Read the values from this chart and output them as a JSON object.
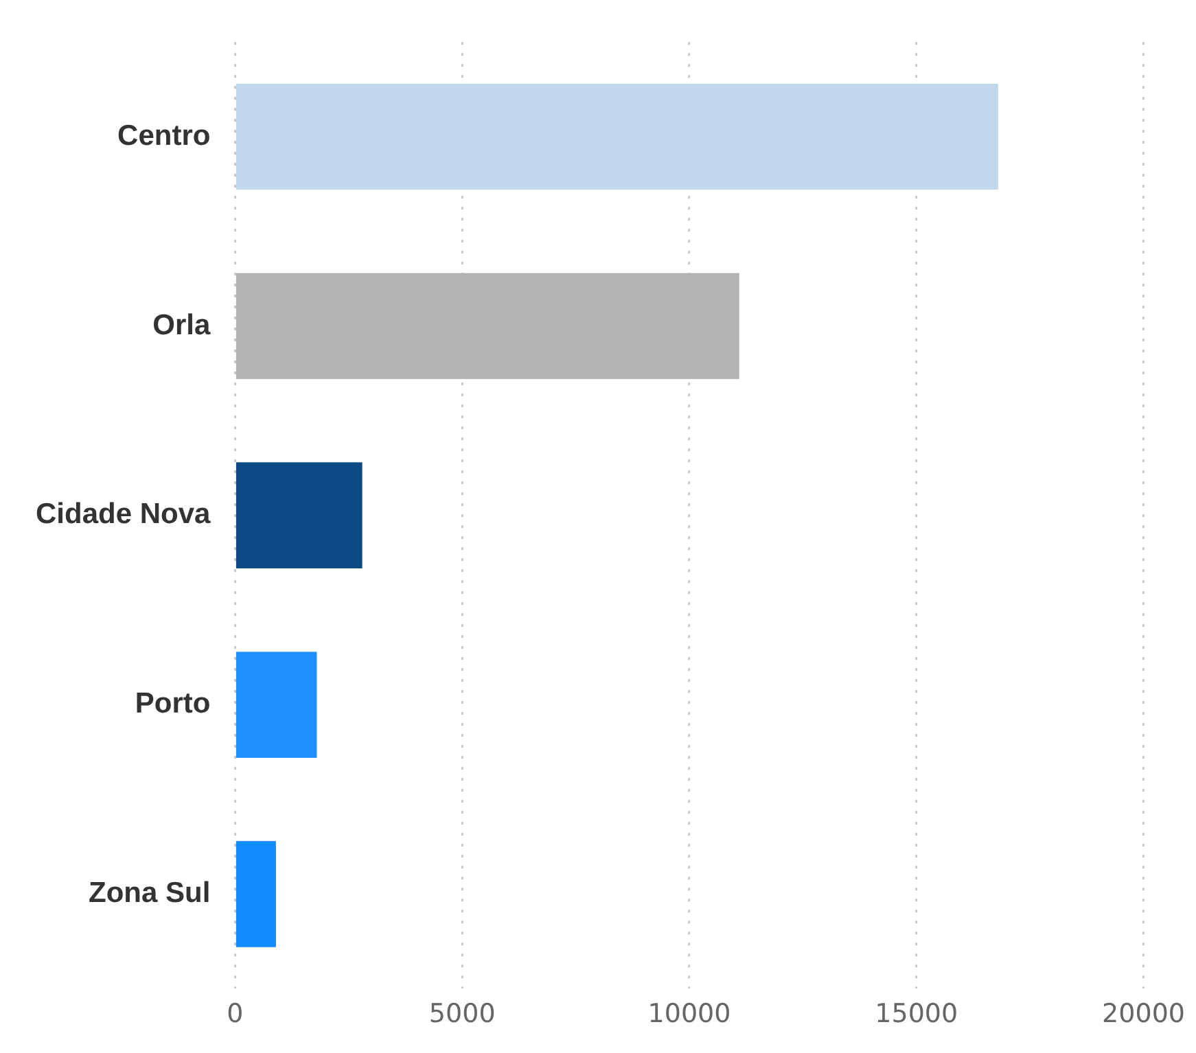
{
  "chart_data": {
    "type": "bar",
    "orientation": "horizontal",
    "categories": [
      "Centro",
      "Orla",
      "Cidade Nova",
      "Porto",
      "Zona Sul"
    ],
    "values": [
      16800,
      11100,
      2800,
      1800,
      900
    ],
    "colors": [
      "#c2d7eb",
      "#b3b3b3",
      "#0b4a82",
      "#1e90ff",
      "#118dff"
    ],
    "xlim": [
      0,
      20000
    ],
    "xticks": [
      0,
      5000,
      10000,
      15000,
      20000
    ],
    "grid": "x",
    "legend": false
  }
}
